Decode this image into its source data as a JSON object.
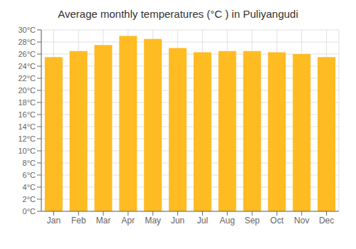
{
  "chart_data": {
    "type": "bar",
    "title": "Average monthly temperatures (°C ) in Puliyangudi",
    "categories": [
      "Jan",
      "Feb",
      "Mar",
      "Apr",
      "May",
      "Jun",
      "Jul",
      "Aug",
      "Sep",
      "Oct",
      "Nov",
      "Dec"
    ],
    "values": [
      25.5,
      26.5,
      27.5,
      29.0,
      28.5,
      27.0,
      26.3,
      26.5,
      26.5,
      26.3,
      26.0,
      25.5
    ],
    "color": "#FFBB22",
    "ylim": [
      0,
      30
    ],
    "yticks": [
      {
        "value": 0,
        "label": "0°C"
      },
      {
        "value": 2,
        "label": "2°C"
      },
      {
        "value": 4,
        "label": "4°C"
      },
      {
        "value": 6,
        "label": "6°C"
      },
      {
        "value": 8,
        "label": "8°C"
      },
      {
        "value": 10,
        "label": "10°C"
      },
      {
        "value": 12,
        "label": "12°C"
      },
      {
        "value": 14,
        "label": "14°C"
      },
      {
        "value": 16,
        "label": "16°C"
      },
      {
        "value": 18,
        "label": "18°C"
      },
      {
        "value": 20,
        "label": "20°C"
      },
      {
        "value": 22,
        "label": "22°C"
      },
      {
        "value": 24,
        "label": "24°C"
      },
      {
        "value": 26,
        "label": "26°C"
      },
      {
        "value": 28,
        "label": "28°C"
      },
      {
        "value": 30,
        "label": "30°C"
      }
    ],
    "grid": true
  }
}
